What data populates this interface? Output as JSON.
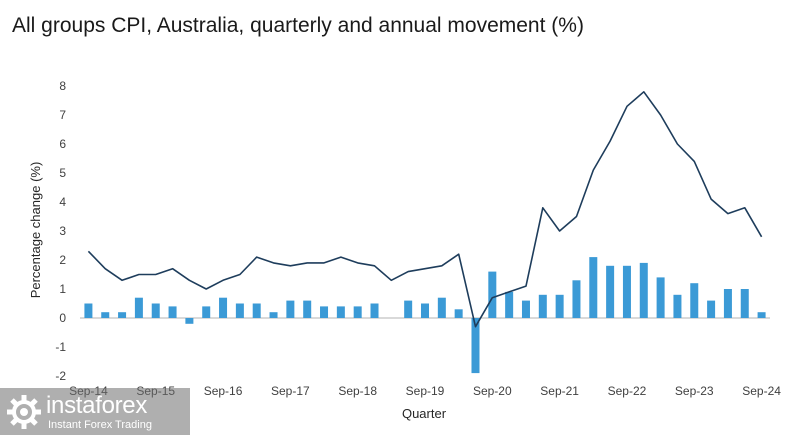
{
  "title": "All groups CPI, Australia, quarterly and annual movement (%)",
  "colors": {
    "bar": "#3b9ad6",
    "line": "#1e3d5c",
    "zero_line": "#b3b3b3",
    "text": "#404040"
  },
  "logo": {
    "name": "instaforex",
    "tagline": "Instant Forex Trading",
    "icon": "instaforex-logo-icon"
  },
  "chart_data": {
    "type": "bar",
    "xlabel": "Quarter",
    "ylabel": "Percentage change (%)",
    "ylim": [
      -2,
      8
    ],
    "yticks": [
      -2,
      -1,
      0,
      1,
      2,
      3,
      4,
      5,
      6,
      7,
      8
    ],
    "categories": [
      "Sep-14",
      "Dec-14",
      "Mar-15",
      "Jun-15",
      "Sep-15",
      "Dec-15",
      "Mar-16",
      "Jun-16",
      "Sep-16",
      "Dec-16",
      "Mar-17",
      "Jun-17",
      "Sep-17",
      "Dec-17",
      "Mar-18",
      "Jun-18",
      "Sep-18",
      "Dec-18",
      "Mar-19",
      "Jun-19",
      "Sep-19",
      "Dec-19",
      "Mar-20",
      "Jun-20",
      "Sep-20",
      "Dec-20",
      "Mar-21",
      "Jun-21",
      "Sep-21",
      "Dec-21",
      "Mar-22",
      "Jun-22",
      "Sep-22",
      "Dec-22",
      "Mar-23",
      "Jun-23",
      "Sep-23",
      "Dec-23",
      "Mar-24",
      "Jun-24",
      "Sep-24"
    ],
    "xtick_labels": [
      "Sep-14",
      "Sep-15",
      "Sep-16",
      "Sep-17",
      "Sep-18",
      "Sep-19",
      "Sep-20",
      "Sep-21",
      "Sep-22",
      "Sep-23",
      "Sep-24"
    ],
    "series": [
      {
        "kind": "bar",
        "values": [
          0.5,
          0.2,
          0.2,
          0.7,
          0.5,
          0.4,
          -0.2,
          0.4,
          0.7,
          0.5,
          0.5,
          0.2,
          0.6,
          0.6,
          0.4,
          0.4,
          0.4,
          0.5,
          0.0,
          0.6,
          0.5,
          0.7,
          0.3,
          -1.9,
          1.6,
          0.9,
          0.6,
          0.8,
          0.8,
          1.3,
          2.1,
          1.8,
          1.8,
          1.9,
          1.4,
          0.8,
          1.2,
          0.6,
          1.0,
          1.0,
          0.2
        ]
      },
      {
        "kind": "line",
        "values": [
          2.3,
          1.7,
          1.3,
          1.5,
          1.5,
          1.7,
          1.3,
          1.0,
          1.3,
          1.5,
          2.1,
          1.9,
          1.8,
          1.9,
          1.9,
          2.1,
          1.9,
          1.8,
          1.3,
          1.6,
          1.7,
          1.8,
          2.2,
          -0.3,
          0.7,
          0.9,
          1.1,
          3.8,
          3.0,
          3.5,
          5.1,
          6.1,
          7.3,
          7.8,
          7.0,
          6.0,
          5.4,
          4.1,
          3.6,
          3.8,
          2.8
        ]
      }
    ],
    "grid": false,
    "legend": "none"
  }
}
